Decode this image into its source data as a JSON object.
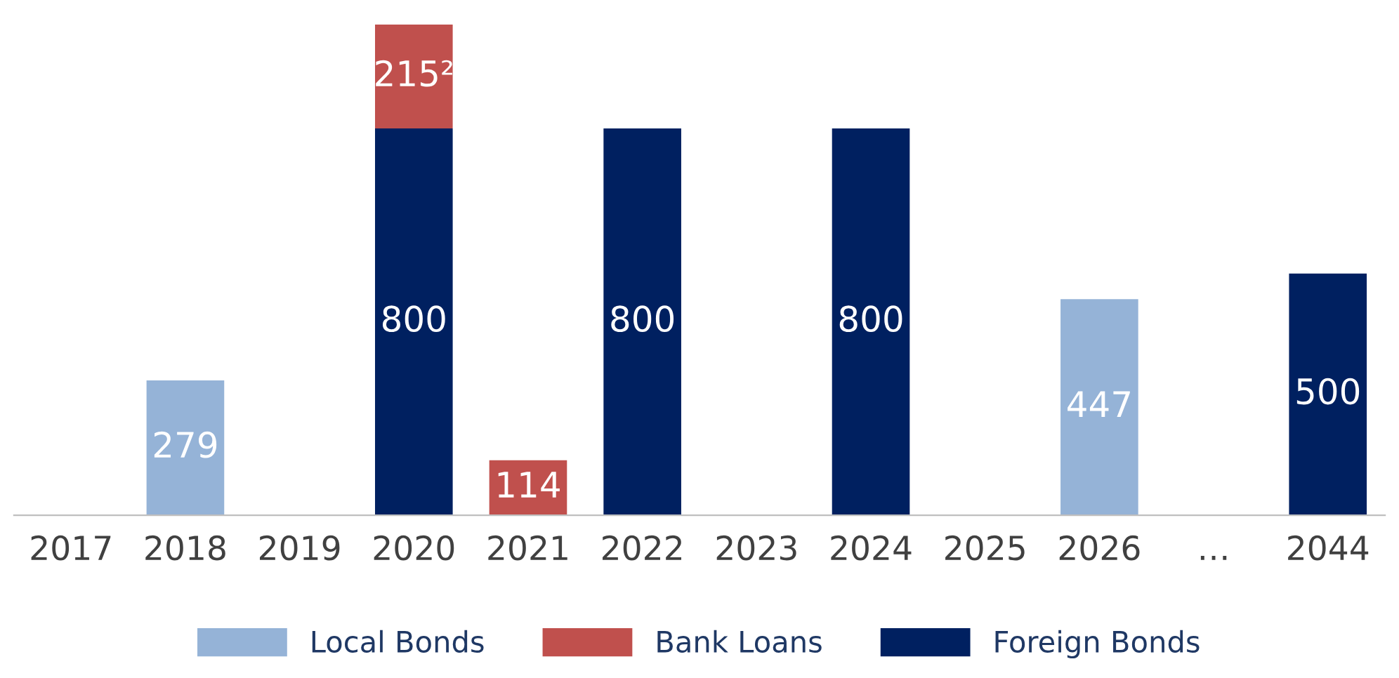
{
  "chart_data": {
    "type": "bar",
    "stacked": true,
    "categories": [
      "2017",
      "2018",
      "2019",
      "2020",
      "2021",
      "2022",
      "2023",
      "2024",
      "2025",
      "2026",
      "…",
      "2044"
    ],
    "series": [
      {
        "name": "Local Bonds",
        "color": "#95b3d7",
        "values": [
          null,
          279,
          null,
          null,
          null,
          null,
          null,
          null,
          null,
          447,
          null,
          null
        ],
        "value_labels": [
          null,
          "279",
          null,
          null,
          null,
          null,
          null,
          null,
          null,
          "447",
          null,
          null
        ]
      },
      {
        "name": "Foreign Bonds",
        "color": "#002060",
        "values": [
          null,
          null,
          null,
          800,
          null,
          800,
          null,
          800,
          null,
          null,
          null,
          500
        ],
        "value_labels": [
          null,
          null,
          null,
          "800",
          null,
          "800",
          null,
          "800",
          null,
          null,
          null,
          "500"
        ]
      },
      {
        "name": "Bank Loans",
        "color": "#c0504d",
        "values": [
          null,
          null,
          null,
          215,
          114,
          null,
          null,
          null,
          null,
          null,
          null,
          null
        ],
        "value_labels": [
          null,
          null,
          null,
          "215²",
          "114",
          null,
          null,
          null,
          null,
          null,
          null,
          null
        ]
      }
    ],
    "legend": "bottom",
    "grid": false
  }
}
